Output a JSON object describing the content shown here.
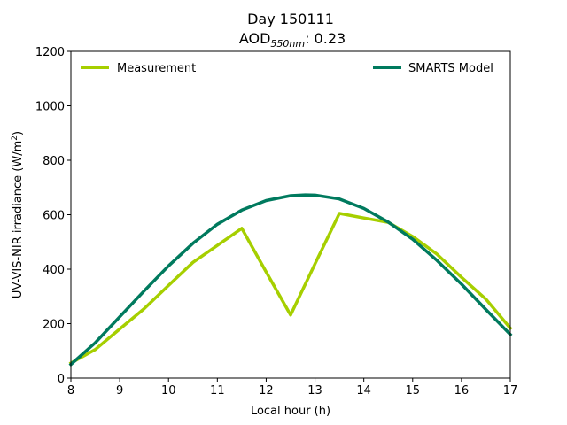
{
  "chart_data": {
    "type": "line",
    "title": "Day 150111",
    "subtitle": {
      "prefix": "AOD",
      "subscript": "550nm",
      "suffix": ": 0.23"
    },
    "xlabel": "Local hour (h)",
    "ylabel": {
      "main": "UV-VIS-NIR irradiance (W/m",
      "sup": "2",
      "close": ")"
    },
    "xlim": [
      8,
      17
    ],
    "ylim": [
      0,
      1200
    ],
    "xticks": [
      "8",
      "9",
      "10",
      "11",
      "12",
      "13",
      "14",
      "15",
      "16",
      "17"
    ],
    "yticks": [
      "0",
      "200",
      "400",
      "600",
      "800",
      "1000",
      "1200"
    ],
    "grid": false,
    "legend_placement": "top",
    "series": [
      {
        "name": "Measurement",
        "color": "#a6cf00",
        "x": [
          8.0,
          8.5,
          9.0,
          9.5,
          10.0,
          10.5,
          11.0,
          11.5,
          12.0,
          12.5,
          13.0,
          13.5,
          14.0,
          14.5,
          15.0,
          15.5,
          16.0,
          16.5,
          17.0
        ],
        "y": [
          55,
          105,
          180,
          255,
          340,
          425,
          487,
          550,
          390,
          232,
          420,
          605,
          588,
          572,
          520,
          455,
          370,
          290,
          183
        ]
      },
      {
        "name": "SMARTS Model",
        "color": "#007a5e",
        "x": [
          8.0,
          8.5,
          9.0,
          9.5,
          10.0,
          10.5,
          11.0,
          11.5,
          12.0,
          12.5,
          12.8,
          13.0,
          13.5,
          14.0,
          14.5,
          15.0,
          15.5,
          16.0,
          16.5,
          17.0
        ],
        "y": [
          50,
          130,
          225,
          320,
          412,
          495,
          565,
          617,
          652,
          670,
          673,
          672,
          658,
          623,
          573,
          510,
          432,
          345,
          252,
          160
        ]
      }
    ]
  }
}
